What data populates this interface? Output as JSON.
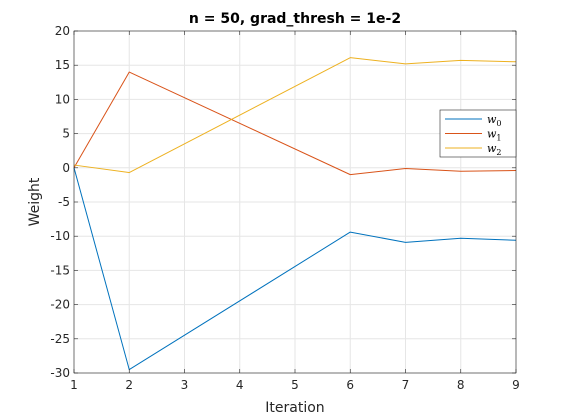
{
  "chart_data": {
    "type": "line",
    "title": "n = 50, grad_thresh = 1e-2",
    "xlabel": "Iteration",
    "ylabel": "Weight",
    "xlim": [
      1,
      9
    ],
    "ylim": [
      -30,
      20
    ],
    "xticks": [
      1,
      2,
      3,
      4,
      5,
      6,
      7,
      8,
      9
    ],
    "yticks": [
      -30,
      -25,
      -20,
      -15,
      -10,
      -5,
      0,
      5,
      10,
      15,
      20
    ],
    "grid": true,
    "legend_position": "right",
    "x": [
      1,
      2,
      6,
      7,
      8,
      9
    ],
    "series": [
      {
        "name": "w",
        "sub": "0",
        "color": "#0072BD",
        "values": [
          0,
          -29.5,
          -9.4,
          -10.9,
          -10.3,
          -10.6
        ]
      },
      {
        "name": "w",
        "sub": "1",
        "color": "#D95319",
        "values": [
          0,
          14.0,
          -1.0,
          -0.1,
          -0.5,
          -0.4
        ]
      },
      {
        "name": "w",
        "sub": "2",
        "color": "#EDB120",
        "values": [
          0.4,
          -0.7,
          16.1,
          15.2,
          15.7,
          15.5
        ]
      }
    ]
  }
}
